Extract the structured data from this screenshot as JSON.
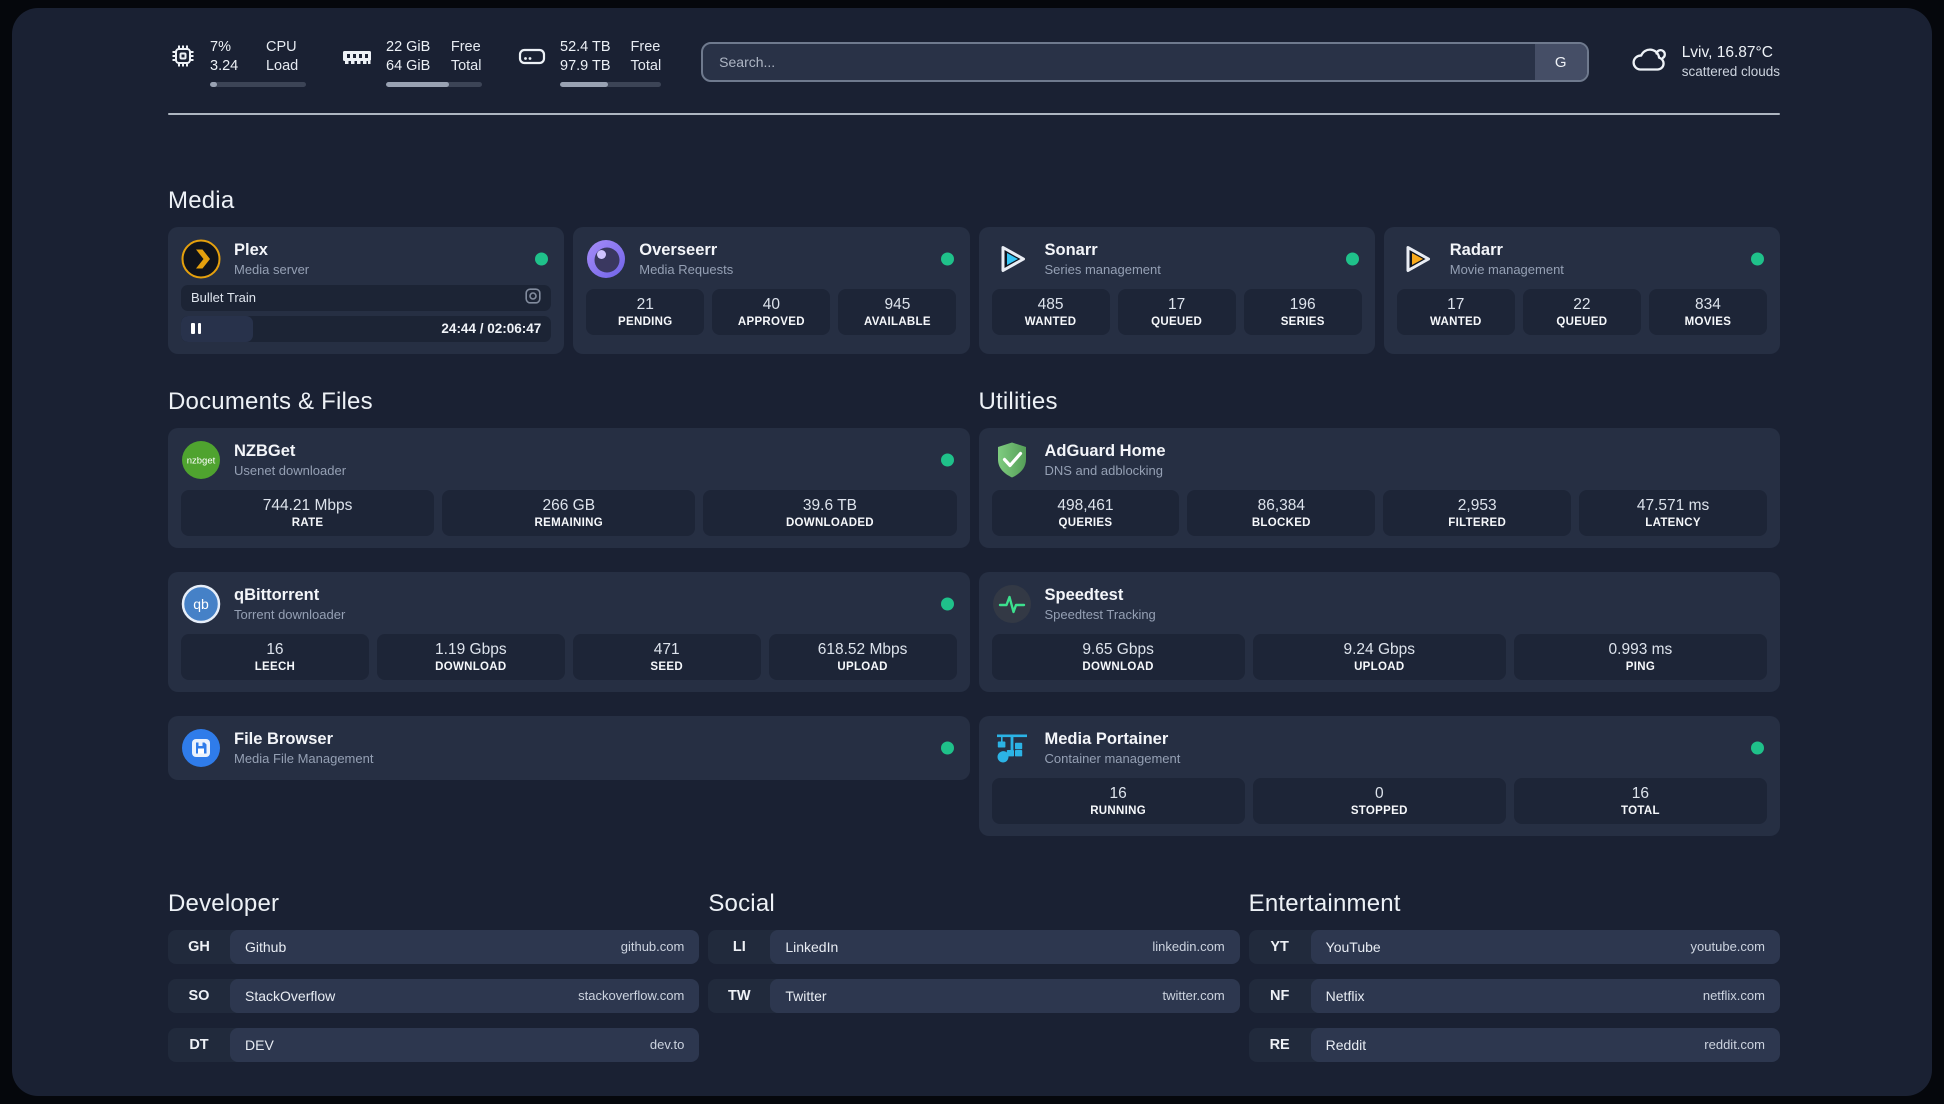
{
  "colors": {
    "status_online": "#1fc18a",
    "plex_accent": "#e5a00d",
    "sonarr_accent": "#35c5f4",
    "radarr_accent": "#f7a91c",
    "portainer_accent": "#2bb3e5"
  },
  "topbar": {
    "cpu": {
      "value_top": "7%",
      "label_top": "CPU",
      "value_bottom": "3.24",
      "label_bottom": "Load",
      "progress_percent": 7
    },
    "memory": {
      "value_top": "22 GiB",
      "label_top": "Free",
      "value_bottom": "64 GiB",
      "label_bottom": "Total",
      "progress_percent": 66
    },
    "disk": {
      "value_top": "52.4 TB",
      "label_top": "Free",
      "value_bottom": "97.9 TB",
      "label_bottom": "Total",
      "progress_percent": 47
    },
    "search": {
      "placeholder": "Search...",
      "button_label": "G"
    },
    "weather": {
      "location": "Lviv, 16.87°C",
      "condition": "scattered clouds"
    }
  },
  "media": {
    "title": "Media",
    "plex": {
      "name": "Plex",
      "description": "Media server",
      "now_playing": "Bullet Train",
      "time": "24:44 / 02:06:47",
      "progress_percent": 19.5
    },
    "overseerr": {
      "name": "Overseerr",
      "description": "Media Requests",
      "stats": [
        {
          "value": "21",
          "label": "PENDING"
        },
        {
          "value": "40",
          "label": "APPROVED"
        },
        {
          "value": "945",
          "label": "AVAILABLE"
        }
      ]
    },
    "sonarr": {
      "name": "Sonarr",
      "description": "Series management",
      "stats": [
        {
          "value": "485",
          "label": "WANTED"
        },
        {
          "value": "17",
          "label": "QUEUED"
        },
        {
          "value": "196",
          "label": "SERIES"
        }
      ]
    },
    "radarr": {
      "name": "Radarr",
      "description": "Movie management",
      "stats": [
        {
          "value": "17",
          "label": "WANTED"
        },
        {
          "value": "22",
          "label": "QUEUED"
        },
        {
          "value": "834",
          "label": "MOVIES"
        }
      ]
    }
  },
  "documents": {
    "title": "Documents & Files",
    "nzbget": {
      "name": "NZBGet",
      "description": "Usenet downloader",
      "stats": [
        {
          "value": "744.21 Mbps",
          "label": "RATE"
        },
        {
          "value": "266 GB",
          "label": "REMAINING"
        },
        {
          "value": "39.6 TB",
          "label": "DOWNLOADED"
        }
      ]
    },
    "qbittorrent": {
      "name": "qBittorrent",
      "description": "Torrent downloader",
      "stats": [
        {
          "value": "16",
          "label": "LEECH"
        },
        {
          "value": "1.19 Gbps",
          "label": "DOWNLOAD"
        },
        {
          "value": "471",
          "label": "SEED"
        },
        {
          "value": "618.52 Mbps",
          "label": "UPLOAD"
        }
      ]
    },
    "filebrowser": {
      "name": "File Browser",
      "description": "Media File Management"
    }
  },
  "utilities": {
    "title": "Utilities",
    "adguard": {
      "name": "AdGuard Home",
      "description": "DNS and adblocking",
      "stats": [
        {
          "value": "498,461",
          "label": "QUERIES"
        },
        {
          "value": "86,384",
          "label": "BLOCKED"
        },
        {
          "value": "2,953",
          "label": "FILTERED"
        },
        {
          "value": "47.571 ms",
          "label": "LATENCY"
        }
      ]
    },
    "speedtest": {
      "name": "Speedtest",
      "description": "Speedtest Tracking",
      "stats": [
        {
          "value": "9.65 Gbps",
          "label": "DOWNLOAD"
        },
        {
          "value": "9.24 Gbps",
          "label": "UPLOAD"
        },
        {
          "value": "0.993 ms",
          "label": "PING"
        }
      ]
    },
    "portainer": {
      "name": "Media Portainer",
      "description": "Container management",
      "stats": [
        {
          "value": "16",
          "label": "RUNNING"
        },
        {
          "value": "0",
          "label": "STOPPED"
        },
        {
          "value": "16",
          "label": "TOTAL"
        }
      ]
    }
  },
  "bookmarks": {
    "developer": {
      "title": "Developer",
      "links": [
        {
          "abbr": "GH",
          "name": "Github",
          "url": "github.com"
        },
        {
          "abbr": "SO",
          "name": "StackOverflow",
          "url": "stackoverflow.com"
        },
        {
          "abbr": "DT",
          "name": "DEV",
          "url": "dev.to"
        }
      ]
    },
    "social": {
      "title": "Social",
      "links": [
        {
          "abbr": "LI",
          "name": "LinkedIn",
          "url": "linkedin.com"
        },
        {
          "abbr": "TW",
          "name": "Twitter",
          "url": "twitter.com"
        }
      ]
    },
    "entertainment": {
      "title": "Entertainment",
      "links": [
        {
          "abbr": "YT",
          "name": "YouTube",
          "url": "youtube.com"
        },
        {
          "abbr": "NF",
          "name": "Netflix",
          "url": "netflix.com"
        },
        {
          "abbr": "RE",
          "name": "Reddit",
          "url": "reddit.com"
        }
      ]
    }
  }
}
